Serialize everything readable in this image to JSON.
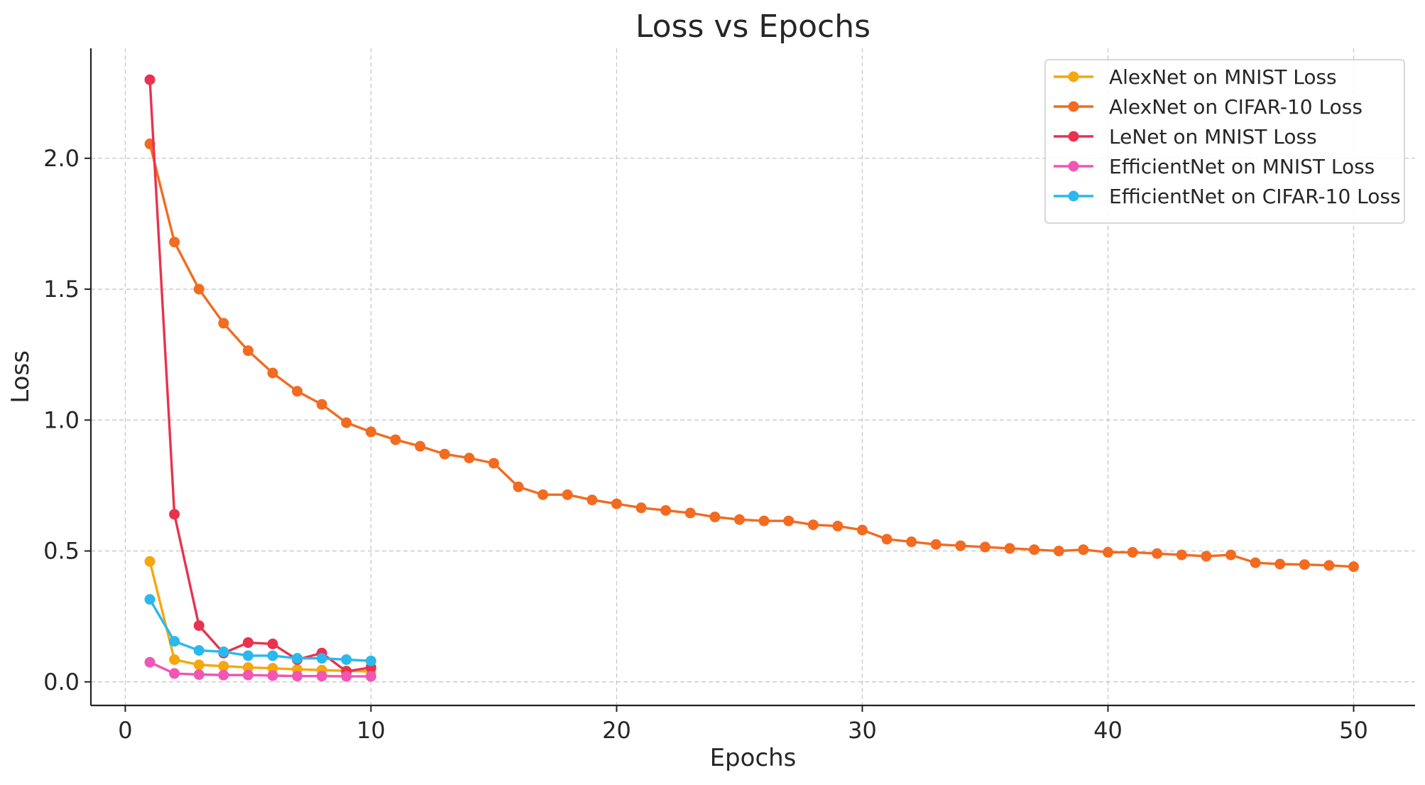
{
  "chart_data": {
    "type": "line",
    "title": "Loss vs Epochs",
    "xlabel": "Epochs",
    "ylabel": "Loss",
    "xlim": [
      -1.4,
      52.5
    ],
    "ylim": [
      -0.09,
      2.42
    ],
    "xticks": [
      0,
      10,
      20,
      30,
      40,
      50
    ],
    "yticks": [
      0.0,
      0.5,
      1.0,
      1.5,
      2.0
    ],
    "xtick_labels": [
      "0",
      "10",
      "20",
      "30",
      "40",
      "50"
    ],
    "ytick_labels": [
      "0.0",
      "0.5",
      "1.0",
      "1.5",
      "2.0"
    ],
    "grid": true,
    "legend_position": "top-right",
    "series": [
      {
        "name": "AlexNet on MNIST Loss",
        "color": "#f5a70f",
        "x": [
          1,
          2,
          3,
          4,
          5,
          6,
          7,
          8,
          9,
          10
        ],
        "y": [
          0.46,
          0.085,
          0.065,
          0.06,
          0.055,
          0.052,
          0.048,
          0.045,
          0.042,
          0.04
        ]
      },
      {
        "name": "AlexNet on CIFAR-10 Loss",
        "color": "#f26b21",
        "x": [
          1,
          2,
          3,
          4,
          5,
          6,
          7,
          8,
          9,
          10,
          11,
          12,
          13,
          14,
          15,
          16,
          17,
          18,
          19,
          20,
          21,
          22,
          23,
          24,
          25,
          26,
          27,
          28,
          29,
          30,
          31,
          32,
          33,
          34,
          35,
          36,
          37,
          38,
          39,
          40,
          41,
          42,
          43,
          44,
          45,
          46,
          47,
          48,
          49,
          50
        ],
        "y": [
          2.055,
          1.68,
          1.5,
          1.37,
          1.265,
          1.18,
          1.11,
          1.06,
          0.99,
          0.955,
          0.925,
          0.9,
          0.87,
          0.855,
          0.835,
          0.745,
          0.715,
          0.715,
          0.695,
          0.68,
          0.665,
          0.655,
          0.645,
          0.63,
          0.62,
          0.615,
          0.615,
          0.6,
          0.595,
          0.58,
          0.545,
          0.535,
          0.525,
          0.52,
          0.515,
          0.51,
          0.505,
          0.5,
          0.505,
          0.495,
          0.495,
          0.49,
          0.485,
          0.48,
          0.485,
          0.455,
          0.45,
          0.448,
          0.445,
          0.44
        ]
      },
      {
        "name": "LeNet on MNIST Loss",
        "color": "#e8324f",
        "x": [
          1,
          2,
          3,
          4,
          5,
          6,
          7,
          8,
          9,
          10
        ],
        "y": [
          2.3,
          0.64,
          0.215,
          0.11,
          0.15,
          0.145,
          0.085,
          0.11,
          0.04,
          0.055
        ]
      },
      {
        "name": "EfficientNet on MNIST Loss",
        "color": "#f056b4",
        "x": [
          1,
          2,
          3,
          4,
          5,
          6,
          7,
          8,
          9,
          10
        ],
        "y": [
          0.075,
          0.032,
          0.028,
          0.026,
          0.026,
          0.024,
          0.022,
          0.022,
          0.021,
          0.021
        ]
      },
      {
        "name": "EfficientNet on CIFAR-10 Loss",
        "color": "#2bb8ee",
        "x": [
          1,
          2,
          3,
          4,
          5,
          6,
          7,
          8,
          9,
          10
        ],
        "y": [
          0.315,
          0.155,
          0.12,
          0.115,
          0.1,
          0.1,
          0.09,
          0.09,
          0.085,
          0.08
        ]
      }
    ]
  }
}
